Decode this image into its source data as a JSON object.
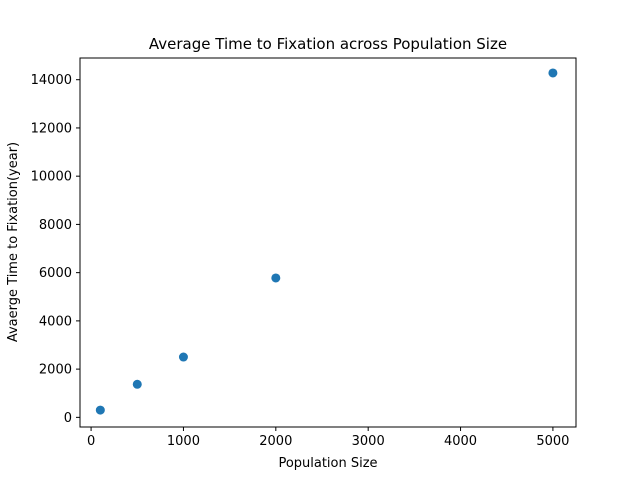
{
  "chart_data": {
    "type": "scatter",
    "title": "Average Time to Fixation across Population Size",
    "xlabel": "Population Size",
    "ylabel": "Avaerge Time to Fixation(year)",
    "xlim": [
      -120,
      5250
    ],
    "ylim": [
      -400,
      14900
    ],
    "xticks": [
      0,
      1000,
      2000,
      3000,
      4000,
      5000
    ],
    "yticks": [
      0,
      2000,
      4000,
      6000,
      8000,
      10000,
      12000,
      14000
    ],
    "grid": false,
    "color": "#1f77b4",
    "series": [
      {
        "x": [
          100,
          500,
          1000,
          2000,
          5000
        ],
        "y": [
          300,
          1370,
          2500,
          5780,
          14280
        ]
      }
    ]
  }
}
